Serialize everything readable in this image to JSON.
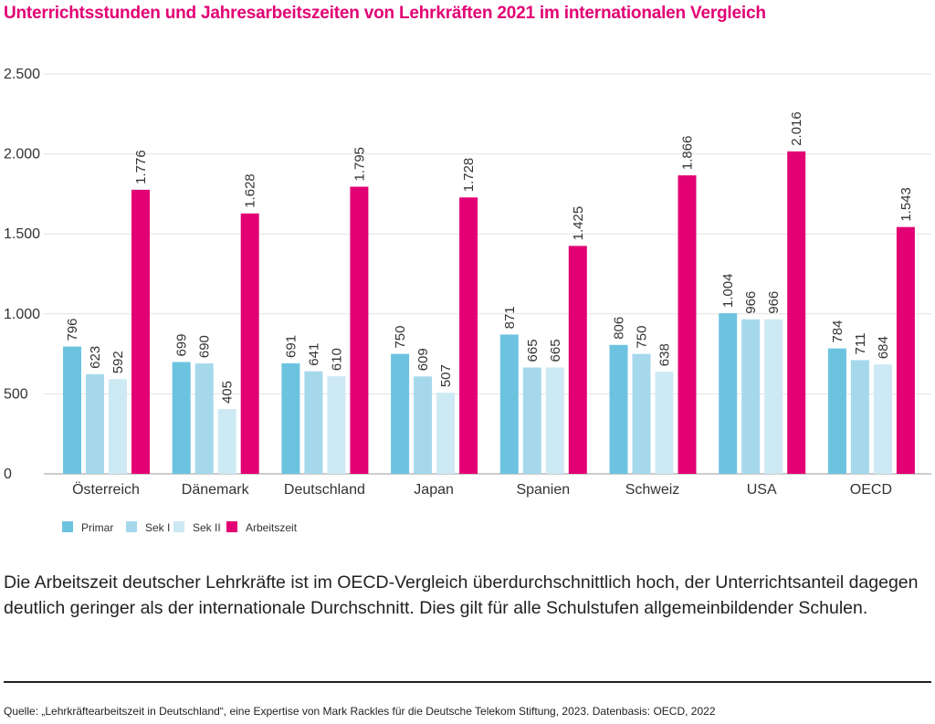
{
  "title": "Unterrichtsstunden und Jahresarbeitszeiten von Lehrkräften 2021 im internationalen Vergleich",
  "description": "Die Arbeitszeit deutscher Lehrkräfte ist im OECD-Vergleich überdurchschnittlich hoch, der Unterrichtsanteil dagegen deutlich geringer als der internationale Durchschnitt. Dies gilt für alle Schulstufen allgemeinbildender Schulen.",
  "source": "Quelle: „Lehrkräftearbeitszeit in Deutschland“, eine Expertise von Mark Rackles für die Deutsche Telekom Stiftung, 2023. Datenbasis: OECD, 2022",
  "chart_data": {
    "type": "bar",
    "title": "Unterrichtsstunden und Jahresarbeitszeiten von Lehrkräften 2021 im internationalen Vergleich",
    "categories": [
      "Österreich",
      "Dänemark",
      "Deutschland",
      "Japan",
      "Spanien",
      "Schweiz",
      "USA",
      "OECD"
    ],
    "series": [
      {
        "name": "Primar",
        "color": "#6cc3e0",
        "values": [
          796,
          699,
          691,
          750,
          871,
          806,
          1004,
          784
        ],
        "labels": [
          "796",
          "699",
          "691",
          "750",
          "871",
          "806",
          "1.004",
          "784"
        ]
      },
      {
        "name": "Sek I",
        "color": "#a6d8ec",
        "values": [
          623,
          690,
          641,
          609,
          665,
          750,
          966,
          711
        ],
        "labels": [
          "623",
          "690",
          "641",
          "609",
          "665",
          "750",
          "966",
          "711"
        ]
      },
      {
        "name": "Sek II",
        "color": "#cde9f4",
        "values": [
          592,
          405,
          610,
          507,
          665,
          638,
          966,
          684
        ],
        "labels": [
          "592",
          "405",
          "610",
          "507",
          "665",
          "638",
          "966",
          "684"
        ]
      },
      {
        "name": "Arbeitszeit",
        "color": "#e20074",
        "values": [
          1776,
          1628,
          1795,
          1728,
          1425,
          1866,
          2016,
          1543
        ],
        "labels": [
          "1.776",
          "1.628",
          "1.795",
          "1.728",
          "1.425",
          "1.866",
          "2.016",
          "1.543"
        ]
      }
    ],
    "yticks": [
      0,
      500,
      1000,
      1500,
      2000,
      2500
    ],
    "ytick_labels": [
      "0",
      "500",
      "1.000",
      "1.500",
      "2.000",
      "2.500"
    ],
    "ylim": [
      0,
      2500
    ],
    "grid": true,
    "legend_position": "bottom-left"
  }
}
